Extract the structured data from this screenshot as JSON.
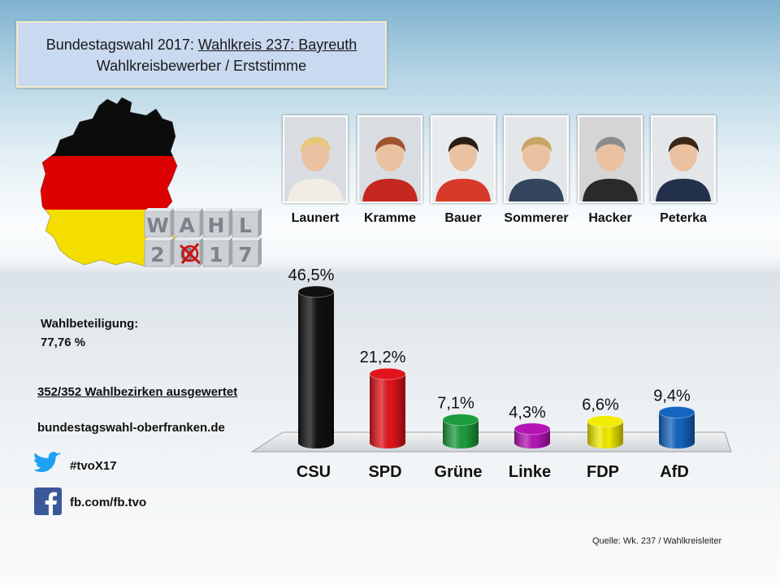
{
  "header": {
    "line1_prefix": "Bundestagswahl 2017: ",
    "line1_link": "Wahlkreis 237: Bayreuth",
    "line2": "Wahlkreisbewerber  / Erststimme"
  },
  "logo": {
    "row1": [
      "W",
      "A",
      "H",
      "L"
    ],
    "row2": [
      "2",
      "0",
      "1",
      "7"
    ]
  },
  "candidates": [
    {
      "name": "Launert",
      "hair": "#e6c77a",
      "clothes": "#f2ede4",
      "bg": "#d9dde2"
    },
    {
      "name": "Kramme",
      "hair": "#a0522d",
      "clothes": "#c4281e",
      "bg": "#d9dde2"
    },
    {
      "name": "Bauer",
      "hair": "#2a1c14",
      "clothes": "#d73a2a",
      "bg": "#e9ecef"
    },
    {
      "name": "Sommerer",
      "hair": "#c9a467",
      "clothes": "#34455e",
      "bg": "#e4e7ea"
    },
    {
      "name": "Hacker",
      "hair": "#8c8c8c",
      "clothes": "#2a2a2a",
      "bg": "#d5d5d5"
    },
    {
      "name": "Peterka",
      "hair": "#3a2616",
      "clothes": "#23324a",
      "bg": "#e4e7ea"
    }
  ],
  "stats": {
    "turnout_label": "Wahlbeteiligung:",
    "turnout_value": "77,76 %",
    "districts": "352/352 Wahlbezirken ausgewertet",
    "website": "bundestagswahl-oberfranken.de",
    "twitter": "#tvoX17",
    "facebook": "fb.com/fb.tvo"
  },
  "source": "Quelle: Wk. 237 / Wahlkreisleiter",
  "colors": {
    "CSU": "#111111",
    "SPD": "#e2141b",
    "Gruene": "#1c9c3c",
    "Linke": "#b414b4",
    "FDP": "#f2ec00",
    "AfD": "#1464c0"
  },
  "chart_data": {
    "type": "bar",
    "categories": [
      "CSU",
      "SPD",
      "Grüne",
      "Linke",
      "FDP",
      "AfD"
    ],
    "values": [
      46.5,
      21.2,
      7.1,
      4.3,
      6.6,
      9.4
    ],
    "labels": [
      "46,5%",
      "21,2%",
      "7,1%",
      "4,3%",
      "6,6%",
      "9,4%"
    ],
    "colors": [
      "#111111",
      "#e2141b",
      "#1c9c3c",
      "#b414b4",
      "#f2ec00",
      "#1464c0"
    ],
    "title": "",
    "xlabel": "",
    "ylabel": "",
    "ylim": [
      0,
      50
    ],
    "grid": false,
    "style": "3d-cylinder"
  }
}
